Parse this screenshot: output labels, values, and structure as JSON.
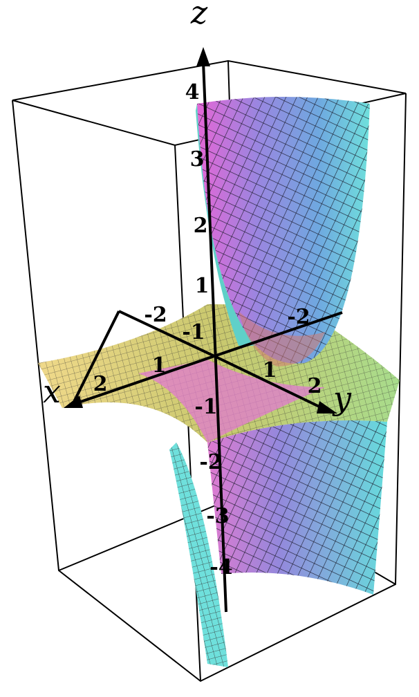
{
  "axes": {
    "x": {
      "label": "x",
      "ticks": [
        "-2",
        "-1",
        "1",
        "2"
      ]
    },
    "y": {
      "label": "y",
      "ticks": [
        "-2",
        "1",
        "2"
      ]
    },
    "z": {
      "label": "z",
      "ticks": [
        "4",
        "3",
        "2",
        "1",
        "-1",
        "-2",
        "-3",
        "-4"
      ]
    }
  }
}
